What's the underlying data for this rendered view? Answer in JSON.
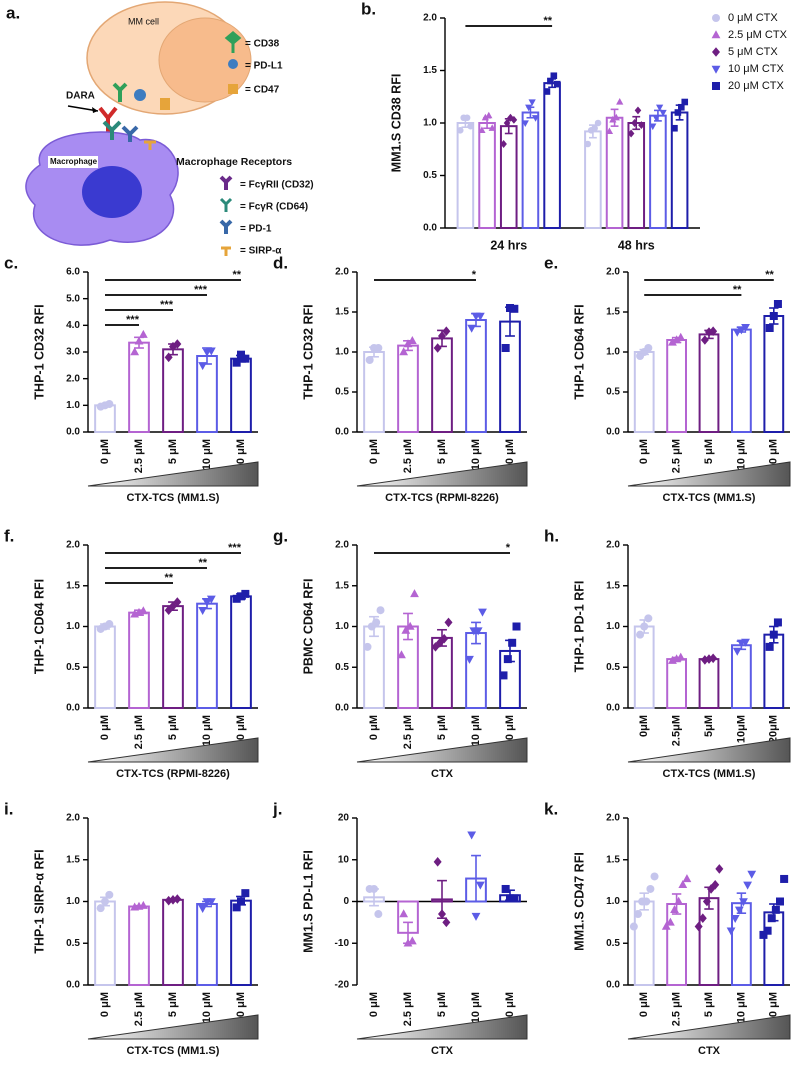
{
  "diagram": {
    "panel": "a.",
    "cell_label": "MM cell",
    "ligands": [
      "= CD38",
      "= PD-L1",
      "= CD47"
    ],
    "antibody": "DARA",
    "macrophage_label": "Macrophage",
    "receptors_title": "Macrophage Receptors",
    "receptors": [
      "= FcγRII (CD32)",
      "= FcγR (CD64)",
      "= PD-1",
      "= SIRP-α"
    ]
  },
  "chart_data": [
    {
      "type": "bar",
      "panel": "b.",
      "ylabel": "MM1.S CD38 RFI",
      "categories": [
        "24 hrs",
        "48 hrs"
      ],
      "series": [
        {
          "name": "0 μM CTX",
          "color": "#c5c5ec",
          "marker": "circle",
          "values": [
            1.0,
            0.92
          ],
          "errors": [
            0.04,
            0.06
          ],
          "points": [
            [
              0.93,
              1.05,
              1.05,
              0.97
            ],
            [
              0.8,
              0.93,
              0.95,
              1.0
            ]
          ]
        },
        {
          "name": "2.5 μM CTX",
          "color": "#b464d2",
          "marker": "triangle",
          "values": [
            1.0,
            1.05
          ],
          "errors": [
            0.05,
            0.08
          ],
          "points": [
            [
              0.93,
              1.05,
              1.07,
              0.95
            ],
            [
              0.92,
              1.03,
              1.05,
              1.2
            ]
          ]
        },
        {
          "name": "5 μM CTX",
          "color": "#6e1e82",
          "marker": "diamond",
          "values": [
            0.97,
            1.0
          ],
          "errors": [
            0.07,
            0.06
          ],
          "points": [
            [
              0.8,
              1.0,
              1.05,
              1.03
            ],
            [
              0.9,
              1.0,
              1.12,
              0.98
            ]
          ]
        },
        {
          "name": "10 μM CTX",
          "color": "#5c5ce6",
          "marker": "triangle-down",
          "values": [
            1.1,
            1.07
          ],
          "errors": [
            0.05,
            0.05
          ],
          "points": [
            [
              1.0,
              1.15,
              1.2,
              1.05
            ],
            [
              0.97,
              1.05,
              1.15,
              1.1
            ]
          ]
        },
        {
          "name": "20 μM CTX",
          "color": "#1e1eaa",
          "marker": "square",
          "values": [
            1.38,
            1.1
          ],
          "errors": [
            0.04,
            0.07
          ],
          "points": [
            [
              1.3,
              1.4,
              1.45,
              1.37
            ],
            [
              0.95,
              1.1,
              1.15,
              1.2
            ]
          ]
        }
      ],
      "ylim": [
        0,
        2
      ],
      "yticks": [
        {
          "value": 0,
          "label": "0.0"
        },
        {
          "value": 0.5,
          "label": "0.5"
        },
        {
          "value": 1,
          "label": "1.0"
        },
        {
          "value": 1.5,
          "label": "1.5"
        },
        {
          "value": 2,
          "label": "2.0"
        }
      ],
      "sig": [
        {
          "group": "24 hrs",
          "from": "0 μM CTX",
          "to": "20 μM CTX",
          "label": "**"
        }
      ],
      "legend": "upper right"
    },
    {
      "type": "bar",
      "panel": "c.",
      "ylabel": "THP-1 CD32 RFI",
      "xlabel": "CTX-TCS (MM1.S)",
      "wedge": true,
      "categories": [
        "0 μM",
        "2.5 μM",
        "5 μM",
        "10 μM",
        "20 μM"
      ],
      "colors": [
        "#c5c5ec",
        "#b464d2",
        "#6e1e82",
        "#5c5ce6",
        "#1e1eaa"
      ],
      "markers": [
        "circle",
        "triangle",
        "diamond",
        "triangle-down",
        "square"
      ],
      "values": [
        1.0,
        3.35,
        3.1,
        2.85,
        2.75
      ],
      "errors": [
        0.04,
        0.2,
        0.2,
        0.3,
        0.12
      ],
      "points": [
        [
          0.95,
          1.0,
          1.05
        ],
        [
          3.0,
          3.4,
          3.65
        ],
        [
          2.8,
          3.2,
          3.3
        ],
        [
          2.5,
          3.0,
          3.05
        ],
        [
          2.6,
          2.9,
          2.75
        ]
      ],
      "ylim": [
        0,
        6
      ],
      "yticks": [
        {
          "value": 0,
          "label": "0.0"
        },
        {
          "value": 1,
          "label": "1.0"
        },
        {
          "value": 2,
          "label": "2.0"
        },
        {
          "value": 3,
          "label": "3.0"
        },
        {
          "value": 4,
          "label": "4.0"
        },
        {
          "value": 5,
          "label": "5.0"
        },
        {
          "value": 6,
          "label": "6.0"
        }
      ],
      "sig": [
        {
          "from": "0 μM",
          "to": "20 μM",
          "label": "**"
        },
        {
          "from": "0 μM",
          "to": "10 μM",
          "label": "***"
        },
        {
          "from": "0 μM",
          "to": "5 μM",
          "label": "***"
        },
        {
          "from": "0 μM",
          "to": "2.5 μM",
          "label": "***"
        }
      ]
    },
    {
      "type": "bar",
      "panel": "d.",
      "ylabel": "THP-1 CD32 RFI",
      "xlabel": "CTX-TCS (RPMI-8226)",
      "wedge": true,
      "categories": [
        "0 μM",
        "2.5 μM",
        "5 μM",
        "10 μM",
        "20 μM"
      ],
      "colors": [
        "#c5c5ec",
        "#b464d2",
        "#6e1e82",
        "#5c5ce6",
        "#1e1eaa"
      ],
      "markers": [
        "circle",
        "triangle",
        "diamond",
        "triangle-down",
        "square"
      ],
      "values": [
        1.0,
        1.08,
        1.17,
        1.4,
        1.38
      ],
      "errors": [
        0.06,
        0.06,
        0.1,
        0.08,
        0.18
      ],
      "points": [
        [
          0.9,
          1.05,
          1.05
        ],
        [
          1.0,
          1.1,
          1.14
        ],
        [
          1.05,
          1.2,
          1.26
        ],
        [
          1.3,
          1.45,
          1.45
        ],
        [
          1.05,
          1.55,
          1.54
        ]
      ],
      "ylim": [
        0,
        2
      ],
      "yticks": [
        {
          "value": 0,
          "label": "0.0"
        },
        {
          "value": 0.5,
          "label": "0.5"
        },
        {
          "value": 1,
          "label": "1.0"
        },
        {
          "value": 1.5,
          "label": "1.5"
        },
        {
          "value": 2,
          "label": "2.0"
        }
      ],
      "sig": [
        {
          "from": "0 μM",
          "to": "10 μM",
          "label": "*"
        }
      ]
    },
    {
      "type": "bar",
      "panel": "e.",
      "ylabel": "THP-1 CD64 RFI",
      "xlabel": "CTX-TCS (MM1.S)",
      "wedge": true,
      "categories": [
        "0 μM",
        "2.5 μM",
        "5 μM",
        "10 μM",
        "20 μM"
      ],
      "colors": [
        "#c5c5ec",
        "#b464d2",
        "#6e1e82",
        "#5c5ce6",
        "#1e1eaa"
      ],
      "markers": [
        "circle",
        "triangle",
        "diamond",
        "triangle-down",
        "square"
      ],
      "values": [
        1.0,
        1.15,
        1.22,
        1.28,
        1.45
      ],
      "errors": [
        0.03,
        0.03,
        0.05,
        0.03,
        0.1
      ],
      "points": [
        [
          0.95,
          1.0,
          1.05
        ],
        [
          1.12,
          1.15,
          1.18
        ],
        [
          1.15,
          1.25,
          1.26
        ],
        [
          1.25,
          1.28,
          1.31
        ],
        [
          1.3,
          1.45,
          1.6
        ]
      ],
      "ylim": [
        0,
        2
      ],
      "yticks": [
        {
          "value": 0,
          "label": "0.0"
        },
        {
          "value": 0.5,
          "label": "0.5"
        },
        {
          "value": 1,
          "label": "1.0"
        },
        {
          "value": 1.5,
          "label": "1.5"
        },
        {
          "value": 2,
          "label": "2.0"
        }
      ],
      "sig": [
        {
          "from": "0 μM",
          "to": "20 μM",
          "label": "**"
        },
        {
          "from": "0 μM",
          "to": "10 μM",
          "label": "**"
        }
      ]
    },
    {
      "type": "bar",
      "panel": "f.",
      "ylabel": "THP-1 CD64 RFI",
      "xlabel": "CTX-TCS (RPMI-8226)",
      "wedge": true,
      "categories": [
        "0 μM",
        "2.5 μM",
        "5 μM",
        "10 μM",
        "20 μM"
      ],
      "colors": [
        "#c5c5ec",
        "#b464d2",
        "#6e1e82",
        "#5c5ce6",
        "#1e1eaa"
      ],
      "markers": [
        "circle",
        "triangle",
        "diamond",
        "triangle-down",
        "square"
      ],
      "values": [
        1.0,
        1.17,
        1.25,
        1.28,
        1.37
      ],
      "errors": [
        0.03,
        0.03,
        0.05,
        0.06,
        0.03
      ],
      "points": [
        [
          0.97,
          1.0,
          1.03
        ],
        [
          1.15,
          1.17,
          1.19
        ],
        [
          1.2,
          1.25,
          1.3
        ],
        [
          1.2,
          1.3,
          1.34
        ],
        [
          1.34,
          1.37,
          1.4
        ]
      ],
      "ylim": [
        0,
        2
      ],
      "yticks": [
        {
          "value": 0,
          "label": "0.0"
        },
        {
          "value": 0.5,
          "label": "0.5"
        },
        {
          "value": 1,
          "label": "1.0"
        },
        {
          "value": 1.5,
          "label": "1.5"
        },
        {
          "value": 2,
          "label": "2.0"
        }
      ],
      "sig": [
        {
          "from": "0 μM",
          "to": "20 μM",
          "label": "***"
        },
        {
          "from": "0 μM",
          "to": "10 μM",
          "label": "**"
        },
        {
          "from": "0 μM",
          "to": "5 μM",
          "label": "**"
        }
      ]
    },
    {
      "type": "bar",
      "panel": "g.",
      "ylabel": "PBMC CD64 RFI",
      "xlabel": "CTX",
      "wedge": true,
      "categories": [
        "0 μM",
        "2.5 μM",
        "5 μM",
        "10 μM",
        "20 μM"
      ],
      "colors": [
        "#c5c5ec",
        "#b464d2",
        "#6e1e82",
        "#5c5ce6",
        "#1e1eaa"
      ],
      "markers": [
        "circle",
        "triangle",
        "diamond",
        "triangle-down",
        "square"
      ],
      "values": [
        1.0,
        1.0,
        0.86,
        0.92,
        0.7
      ],
      "errors": [
        0.12,
        0.16,
        0.1,
        0.13,
        0.13
      ],
      "points": [
        [
          0.75,
          1.0,
          1.05,
          1.2
        ],
        [
          0.65,
          0.95,
          1.0,
          1.4
        ],
        [
          0.75,
          0.8,
          0.85,
          1.05
        ],
        [
          0.6,
          0.95,
          0.95,
          1.18
        ],
        [
          0.4,
          0.6,
          0.8,
          1.0
        ]
      ],
      "ylim": [
        0,
        2
      ],
      "yticks": [
        {
          "value": 0,
          "label": "0.0"
        },
        {
          "value": 0.5,
          "label": "0.5"
        },
        {
          "value": 1,
          "label": "1.0"
        },
        {
          "value": 1.5,
          "label": "1.5"
        },
        {
          "value": 2,
          "label": "2.0"
        }
      ],
      "sig": [
        {
          "from": "0 μM",
          "to": "20 μM",
          "label": "*"
        }
      ]
    },
    {
      "type": "bar",
      "panel": "h.",
      "ylabel": "THP-1 PD-1 RFI",
      "xlabel": "CTX-TCS (MM1.S)",
      "wedge": true,
      "categories": [
        "0μM",
        "2.5μM",
        "5μM",
        "10μM",
        "20μM"
      ],
      "colors": [
        "#c5c5ec",
        "#b464d2",
        "#6e1e82",
        "#5c5ce6",
        "#1e1eaa"
      ],
      "markers": [
        "circle",
        "triangle",
        "diamond",
        "triangle-down",
        "square"
      ],
      "values": [
        1.0,
        0.6,
        0.6,
        0.77,
        0.9
      ],
      "errors": [
        0.08,
        0.02,
        0.01,
        0.05,
        0.1
      ],
      "points": [
        [
          0.9,
          1.0,
          1.1
        ],
        [
          0.58,
          0.6,
          0.62
        ],
        [
          0.59,
          0.6,
          0.61
        ],
        [
          0.7,
          0.8,
          0.81
        ],
        [
          0.75,
          0.9,
          1.05
        ]
      ],
      "ylim": [
        0,
        2
      ],
      "yticks": [
        {
          "value": 0,
          "label": "0.0"
        },
        {
          "value": 0.5,
          "label": "0.5"
        },
        {
          "value": 1,
          "label": "1.0"
        },
        {
          "value": 1.5,
          "label": "1.5"
        },
        {
          "value": 2,
          "label": "2.0"
        }
      ]
    },
    {
      "type": "bar",
      "panel": "i.",
      "ylabel": "THP-1 SIRP-α RFI",
      "xlabel": "CTX-TCS (MM1.S)",
      "wedge": true,
      "categories": [
        "0 μM",
        "2.5 μM",
        "5 μM",
        "10 μM",
        "20 μM"
      ],
      "colors": [
        "#c5c5ec",
        "#b464d2",
        "#6e1e82",
        "#5c5ce6",
        "#1e1eaa"
      ],
      "markers": [
        "circle",
        "triangle",
        "diamond",
        "triangle-down",
        "square"
      ],
      "values": [
        1.0,
        0.94,
        1.02,
        0.97,
        1.01
      ],
      "errors": [
        0.05,
        0.01,
        0.01,
        0.03,
        0.05
      ],
      "points": [
        [
          0.92,
          1.0,
          1.08
        ],
        [
          0.93,
          0.94,
          0.95
        ],
        [
          1.01,
          1.02,
          1.03
        ],
        [
          0.92,
          1.0,
          1.0
        ],
        [
          0.93,
          1.0,
          1.1
        ]
      ],
      "ylim": [
        0,
        2
      ],
      "yticks": [
        {
          "value": 0,
          "label": "0.0"
        },
        {
          "value": 0.5,
          "label": "0.5"
        },
        {
          "value": 1,
          "label": "1.0"
        },
        {
          "value": 1.5,
          "label": "1.5"
        },
        {
          "value": 2,
          "label": "2.0"
        }
      ]
    },
    {
      "type": "bar",
      "panel": "j.",
      "ylabel": "MM1.S PD-L1 RFI",
      "xlabel": "CTX",
      "wedge": true,
      "categories": [
        "0 μM",
        "2.5 μM",
        "5 μM",
        "10 μM",
        "20 μM"
      ],
      "colors": [
        "#c5c5ec",
        "#b464d2",
        "#6e1e82",
        "#5c5ce6",
        "#1e1eaa"
      ],
      "markers": [
        "circle",
        "triangle",
        "diamond",
        "triangle-down",
        "square"
      ],
      "values": [
        1.0,
        -7.5,
        0.5,
        5.5,
        1.5
      ],
      "errors": [
        2,
        2.5,
        4.5,
        5.5,
        1.2
      ],
      "points": [
        [
          3,
          3,
          -3
        ],
        [
          -3,
          -10,
          -9.5
        ],
        [
          9.5,
          -3,
          -5
        ],
        [
          16,
          -3.5,
          4
        ],
        [
          3,
          0.75,
          0.75
        ]
      ],
      "ylim": [
        -20,
        20
      ],
      "yticks": [
        -20,
        -10,
        0,
        10,
        20
      ]
    },
    {
      "type": "bar",
      "panel": "k.",
      "ylabel": "MM1.S CD47 RFI",
      "xlabel": "CTX",
      "wedge": true,
      "categories": [
        "0 μM",
        "2.5 μM",
        "5 μM",
        "10 μM",
        "20 μM"
      ],
      "colors": [
        "#c5c5ec",
        "#b464d2",
        "#6e1e82",
        "#5c5ce6",
        "#1e1eaa"
      ],
      "markers": [
        "circle",
        "triangle",
        "diamond",
        "triangle-down",
        "square"
      ],
      "values": [
        1.0,
        0.97,
        1.04,
        0.98,
        0.87
      ],
      "errors": [
        0.1,
        0.12,
        0.13,
        0.12,
        0.1
      ],
      "points": [
        [
          0.7,
          0.85,
          1.0,
          1.0,
          1.15,
          1.3
        ],
        [
          0.7,
          0.75,
          0.9,
          1.0,
          1.2,
          1.27
        ],
        [
          0.7,
          0.8,
          1.0,
          1.15,
          1.2,
          1.39
        ],
        [
          0.65,
          0.8,
          0.9,
          1.0,
          1.2,
          1.33
        ],
        [
          0.6,
          0.65,
          0.8,
          0.9,
          1.0,
          1.27
        ]
      ],
      "ylim": [
        0,
        2
      ],
      "yticks": [
        {
          "value": 0,
          "label": "0.0"
        },
        {
          "value": 0.5,
          "label": "0.5"
        },
        {
          "value": 1,
          "label": "1.0"
        },
        {
          "value": 1.5,
          "label": "1.5"
        },
        {
          "value": 2,
          "label": "2.0"
        }
      ]
    }
  ]
}
